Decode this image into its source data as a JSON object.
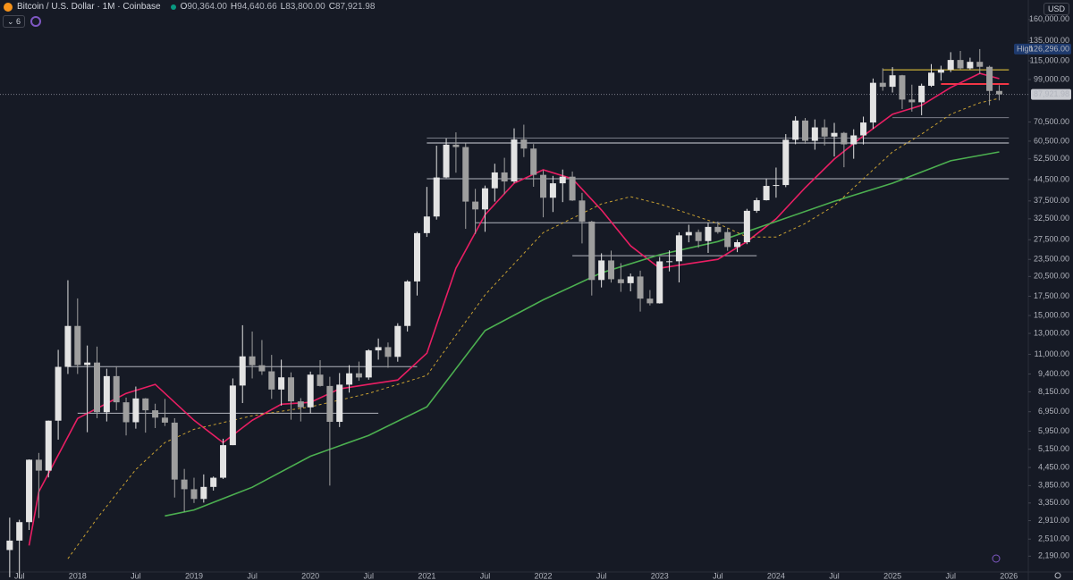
{
  "header": {
    "title": "Bitcoin / U.S. Dollar · 1M · Coinbase",
    "ohlc": [
      {
        "key": "O",
        "label": "90,364.00"
      },
      {
        "key": "H",
        "label": "94,640.66"
      },
      {
        "key": "L",
        "label": "83,800.00"
      },
      {
        "key": "C",
        "label": "87,921.98"
      }
    ],
    "indicator_count": 6,
    "currency": "USD"
  },
  "chart_data": {
    "type": "candlestick",
    "log_scale": true,
    "grid": false,
    "up_color": "#e3e3e3",
    "down_color": "#9e9e9e",
    "x": [
      "2017-06",
      "2017-07",
      "2017-08",
      "2017-09",
      "2017-10",
      "2017-11",
      "2017-12",
      "2018-01",
      "2018-02",
      "2018-03",
      "2018-04",
      "2018-05",
      "2018-06",
      "2018-07",
      "2018-08",
      "2018-09",
      "2018-10",
      "2018-11",
      "2018-12",
      "2019-01",
      "2019-02",
      "2019-03",
      "2019-04",
      "2019-05",
      "2019-06",
      "2019-07",
      "2019-08",
      "2019-09",
      "2019-10",
      "2019-11",
      "2019-12",
      "2020-01",
      "2020-02",
      "2020-03",
      "2020-04",
      "2020-05",
      "2020-06",
      "2020-07",
      "2020-08",
      "2020-09",
      "2020-10",
      "2020-11",
      "2020-12",
      "2021-01",
      "2021-02",
      "2021-03",
      "2021-04",
      "2021-05",
      "2021-06",
      "2021-07",
      "2021-08",
      "2021-09",
      "2021-10",
      "2021-11",
      "2021-12",
      "2022-01",
      "2022-02",
      "2022-03",
      "2022-04",
      "2022-05",
      "2022-06",
      "2022-07",
      "2022-08",
      "2022-09",
      "2022-10",
      "2022-11",
      "2022-12",
      "2023-01",
      "2023-02",
      "2023-03",
      "2023-04",
      "2023-05",
      "2023-06",
      "2023-07",
      "2023-08",
      "2023-09",
      "2023-10",
      "2023-11",
      "2023-12",
      "2024-01",
      "2024-02",
      "2024-03",
      "2024-04",
      "2024-05",
      "2024-06",
      "2024-07",
      "2024-08",
      "2024-09",
      "2024-10",
      "2024-11",
      "2024-12",
      "2025-01",
      "2025-02",
      "2025-03",
      "2025-04",
      "2025-05",
      "2025-06",
      "2025-07",
      "2025-08",
      "2025-09",
      "2025-10",
      "2025-11",
      "2025-12"
    ],
    "open": [
      2300,
      2480,
      2875,
      4735,
      4340,
      6470,
      9950,
      13800,
      10100,
      10300,
      6925,
      9240,
      7495,
      6390,
      7730,
      7030,
      6630,
      6370,
      4040,
      3740,
      3460,
      3810,
      4100,
      5320,
      8570,
      10820,
      10080,
      9600,
      8300,
      9150,
      7550,
      7200,
      9350,
      8540,
      6410,
      8630,
      9450,
      9140,
      11350,
      11650,
      10780,
      13800,
      19700,
      28990,
      33110,
      45240,
      58800,
      57700,
      37300,
      35040,
      41490,
      47100,
      43820,
      61300,
      57000,
      46200,
      38480,
      43180,
      45530,
      37640,
      31790,
      19930,
      23300,
      20050,
      19430,
      20490,
      17170,
      16540,
      23130,
      23150,
      28480,
      29240,
      27210,
      30470,
      29230,
      25940,
      26960,
      34650,
      37720,
      42280,
      42580,
      61170,
      71330,
      60640,
      67520,
      62750,
      64620,
      58970,
      63330,
      70220,
      96450,
      93420,
      102420,
      84350,
      82550,
      94200,
      104600,
      107150,
      115760,
      108250,
      114050,
      109600,
      90364
    ],
    "high": [
      2980,
      2930,
      4750,
      5000,
      6480,
      11400,
      19890,
      17200,
      11800,
      11700,
      9800,
      10000,
      7780,
      8500,
      7750,
      7410,
      7700,
      6600,
      4400,
      4100,
      4210,
      4140,
      5600,
      9070,
      13880,
      13200,
      12330,
      10950,
      10540,
      9520,
      7750,
      9580,
      10500,
      9190,
      9470,
      10080,
      10380,
      11450,
      12480,
      12090,
      14100,
      19900,
      29300,
      41950,
      58350,
      61790,
      64900,
      59500,
      41300,
      42400,
      50500,
      52950,
      67000,
      69000,
      59100,
      47990,
      45820,
      48200,
      47450,
      40000,
      31990,
      24670,
      25210,
      22800,
      20990,
      21480,
      18390,
      23950,
      25250,
      29190,
      31000,
      29840,
      31440,
      31800,
      30200,
      27500,
      35200,
      38450,
      44750,
      48970,
      64000,
      73800,
      72800,
      71950,
      72000,
      70000,
      65100,
      66500,
      73600,
      99800,
      108350,
      109350,
      102750,
      95000,
      95800,
      112000,
      110550,
      123200,
      124450,
      117900,
      126296,
      110600,
      94640.66
    ],
    "low": [
      1850,
      1830,
      2700,
      2970,
      4110,
      5560,
      9400,
      9400,
      5900,
      6600,
      6430,
      7030,
      5750,
      6070,
      5880,
      6100,
      6200,
      3500,
      3120,
      3350,
      3360,
      3700,
      4060,
      5320,
      7450,
      9070,
      9330,
      7700,
      7300,
      6520,
      6430,
      6860,
      8500,
      3850,
      6150,
      8100,
      8900,
      8980,
      10540,
      9880,
      10370,
      13200,
      17600,
      28130,
      32300,
      45000,
      47000,
      30000,
      28800,
      29300,
      37300,
      39600,
      43290,
      53250,
      42000,
      32900,
      34320,
      37150,
      37500,
      26700,
      17600,
      18780,
      19520,
      18130,
      18200,
      15480,
      16260,
      16500,
      21350,
      19550,
      26940,
      25800,
      24750,
      28860,
      25170,
      24900,
      26540,
      34100,
      37630,
      38500,
      41880,
      59000,
      59200,
      56500,
      58450,
      53500,
      49100,
      52550,
      58900,
      66800,
      90500,
      89250,
      78200,
      76600,
      74400,
      93350,
      98200,
      105100,
      107300,
      107300,
      103500,
      80600,
      83800
    ],
    "close": [
      2480,
      2875,
      4735,
      4340,
      6470,
      9950,
      13800,
      10100,
      10300,
      6925,
      9240,
      7495,
      6390,
      7730,
      7030,
      6630,
      6370,
      4040,
      3740,
      3460,
      3810,
      4100,
      5320,
      8570,
      10820,
      10080,
      9600,
      8300,
      9150,
      7550,
      7200,
      9350,
      8540,
      6410,
      8630,
      9450,
      9140,
      11350,
      11650,
      10780,
      13800,
      19700,
      28990,
      33110,
      45240,
      58800,
      57700,
      37300,
      35040,
      41490,
      47100,
      43820,
      61300,
      57000,
      46200,
      38480,
      43180,
      45530,
      37640,
      31790,
      19930,
      23300,
      20050,
      19430,
      20490,
      17170,
      16540,
      23130,
      23150,
      28480,
      29240,
      27210,
      30470,
      29230,
      25940,
      26960,
      34650,
      37720,
      42280,
      42580,
      61170,
      71330,
      60640,
      67520,
      62750,
      64620,
      58970,
      63330,
      70220,
      96450,
      93420,
      102420,
      84350,
      82550,
      94200,
      104600,
      107150,
      115760,
      108250,
      114050,
      109600,
      90364,
      87921.98
    ],
    "xlim": [
      "2017-05",
      "2026-03"
    ],
    "xticks": [
      {
        "value": "2017-07",
        "label": "Jul"
      },
      {
        "value": "2018-01",
        "label": "2018"
      },
      {
        "value": "2018-07",
        "label": "Jul"
      },
      {
        "value": "2019-01",
        "label": "2019"
      },
      {
        "value": "2019-07",
        "label": "Jul"
      },
      {
        "value": "2020-01",
        "label": "2020"
      },
      {
        "value": "2020-07",
        "label": "Jul"
      },
      {
        "value": "2021-01",
        "label": "2021"
      },
      {
        "value": "2021-07",
        "label": "Jul"
      },
      {
        "value": "2022-01",
        "label": "2022"
      },
      {
        "value": "2022-07",
        "label": "Jul"
      },
      {
        "value": "2023-01",
        "label": "2023"
      },
      {
        "value": "2023-07",
        "label": "Jul"
      },
      {
        "value": "2024-01",
        "label": "2024"
      },
      {
        "value": "2024-07",
        "label": "Jul"
      },
      {
        "value": "2025-01",
        "label": "2025"
      },
      {
        "value": "2025-07",
        "label": "Jul"
      },
      {
        "value": "2026-01",
        "label": "2026"
      }
    ],
    "ylim": [
      1930,
      187000
    ],
    "yticks": [
      {
        "value": 160000,
        "label": "160,000.00"
      },
      {
        "value": 135000,
        "label": "135,000.00"
      },
      {
        "value": 115000,
        "label": "115,000.00"
      },
      {
        "value": 99000,
        "label": "99,000.00"
      },
      {
        "value": 70500,
        "label": "70,500.00"
      },
      {
        "value": 60500,
        "label": "60,500.00"
      },
      {
        "value": 52500,
        "label": "52,500.00"
      },
      {
        "value": 44500,
        "label": "44,500.00"
      },
      {
        "value": 37500,
        "label": "37,500.00"
      },
      {
        "value": 32500,
        "label": "32,500.00"
      },
      {
        "value": 27500,
        "label": "27,500.00"
      },
      {
        "value": 23500,
        "label": "23,500.00"
      },
      {
        "value": 20500,
        "label": "20,500.00"
      },
      {
        "value": 17500,
        "label": "17,500.00"
      },
      {
        "value": 15000,
        "label": "15,000.00"
      },
      {
        "value": 13000,
        "label": "13,000.00"
      },
      {
        "value": 11000,
        "label": "11,000.00"
      },
      {
        "value": 9400,
        "label": "9,400.00"
      },
      {
        "value": 8150,
        "label": "8,150.00"
      },
      {
        "value": 6950,
        "label": "6,950.00"
      },
      {
        "value": 5950,
        "label": "5,950.00"
      },
      {
        "value": 5150,
        "label": "5,150.00"
      },
      {
        "value": 4450,
        "label": "4,450.00"
      },
      {
        "value": 3850,
        "label": "3,850.00"
      },
      {
        "value": 3350,
        "label": "3,350.00"
      },
      {
        "value": 2910,
        "label": "2,910.00"
      },
      {
        "value": 2510,
        "label": "2,510.00"
      },
      {
        "value": 2190,
        "label": "2,190.00"
      }
    ],
    "indicators": [
      {
        "color": "#e91e63",
        "dashed": false,
        "x": [
          "2017-08",
          "2017-09",
          "2018-01",
          "2018-06",
          "2018-09",
          "2019-01",
          "2019-04",
          "2019-07",
          "2019-10",
          "2020-01",
          "2020-04",
          "2020-07",
          "2020-10",
          "2021-01",
          "2021-04",
          "2021-07",
          "2021-10",
          "2022-01",
          "2022-04",
          "2022-07",
          "2022-10",
          "2023-01",
          "2023-04",
          "2023-07",
          "2023-10",
          "2024-01",
          "2024-04",
          "2024-07",
          "2024-10",
          "2025-01",
          "2025-04",
          "2025-07",
          "2025-10",
          "2025-12"
        ],
        "values": [
          2385,
          3665,
          6590,
          8050,
          8650,
          6490,
          5430,
          6490,
          7380,
          7490,
          8340,
          8650,
          8960,
          11100,
          21900,
          33600,
          43200,
          48100,
          44800,
          34900,
          26200,
          21900,
          22700,
          23500,
          27100,
          32500,
          41700,
          52400,
          63100,
          75000,
          80500,
          92900,
          104000,
          99700
        ]
      },
      {
        "color": "#4caf50",
        "dashed": false,
        "x": [
          "2018-10",
          "2019-01",
          "2019-07",
          "2020-01",
          "2020-07",
          "2021-01",
          "2021-07",
          "2022-01",
          "2022-07",
          "2023-01",
          "2023-07",
          "2024-01",
          "2024-07",
          "2025-01",
          "2025-07",
          "2025-12"
        ],
        "values": [
          3020,
          3170,
          3800,
          4870,
          5750,
          7230,
          13300,
          17000,
          21100,
          24400,
          27100,
          31800,
          37400,
          43200,
          51700,
          55500
        ]
      },
      {
        "color": "#c8a032",
        "dashed": true,
        "x": [
          "2017-12",
          "2018-03",
          "2018-07",
          "2018-10",
          "2019-01",
          "2019-07",
          "2020-01",
          "2020-07",
          "2021-01",
          "2021-07",
          "2022-01",
          "2022-07",
          "2022-10",
          "2023-01",
          "2023-07",
          "2023-10",
          "2024-01",
          "2024-04",
          "2024-07",
          "2024-10",
          "2025-01",
          "2025-04",
          "2025-07",
          "2025-10",
          "2025-12"
        ],
        "values": [
          2145,
          2960,
          4380,
          5430,
          6040,
          6730,
          7230,
          8050,
          9290,
          17700,
          29100,
          36600,
          38800,
          36600,
          31300,
          28100,
          28100,
          31300,
          36100,
          44800,
          55500,
          64000,
          75000,
          82200,
          85200
        ]
      }
    ],
    "levels": [
      {
        "value": 9970,
        "color": "#b2b5be",
        "from": "2017-12",
        "to": "2020-12"
      },
      {
        "value": 6870,
        "color": "#b2b5be",
        "from": "2018-01",
        "to": "2020-08"
      },
      {
        "value": 62000,
        "color": "#787b86",
        "from": "2021-01",
        "to": "2026-01"
      },
      {
        "value": 59600,
        "color": "#d1d4dc",
        "from": "2021-01",
        "to": "2026-01"
      },
      {
        "value": 44800,
        "color": "#b2b5be",
        "from": "2021-01",
        "to": "2026-01"
      },
      {
        "value": 31500,
        "color": "#b2b5be",
        "from": "2021-06",
        "to": "2023-10"
      },
      {
        "value": 24200,
        "color": "#b2b5be",
        "from": "2022-04",
        "to": "2023-11"
      },
      {
        "value": 73000,
        "color": "#787b86",
        "from": "2025-01",
        "to": "2026-01"
      },
      {
        "value": 107000,
        "color": "#f5d33b",
        "from": "2024-12",
        "to": "2026-01"
      },
      {
        "value": 95500,
        "color": "#f23645",
        "from": "2025-06",
        "to": "2026-01"
      }
    ],
    "high_badge": {
      "label": "High",
      "value": 126296,
      "value_label": "126,296.00"
    },
    "last_badge": {
      "value": 87921.98,
      "value_label": "87,921.98"
    }
  }
}
